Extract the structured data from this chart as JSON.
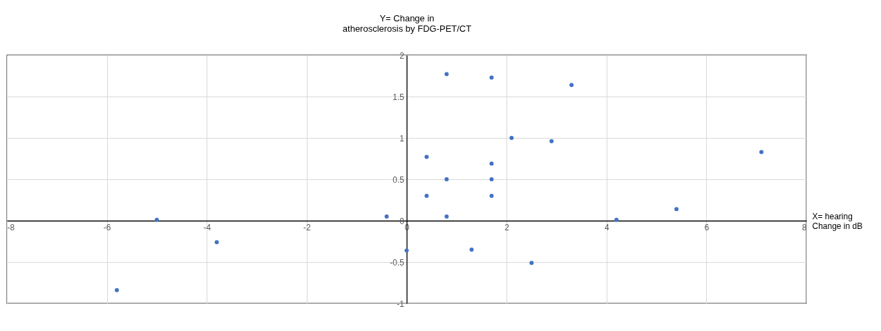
{
  "chart_data": {
    "type": "scatter",
    "xlabel": "X= hearing\nChange in dB",
    "ylabel": "Y= Change in\natherosclerosis  by FDG-PET/CT",
    "x": [
      0.8,
      1.7,
      3.3,
      2.1,
      2.9,
      0.4,
      1.7,
      7.1,
      0.8,
      1.7,
      0.4,
      1.7,
      5.4,
      0.8,
      -0.4,
      -5.0,
      4.2,
      -3.8,
      0,
      1.3,
      2.5,
      -5.8
    ],
    "series": [
      {
        "color": "#4472c4",
        "values": [
          1.77,
          1.73,
          1.64,
          1.0,
          0.96,
          0.77,
          0.69,
          0.83,
          0.5,
          0.5,
          0.3,
          0.3,
          0.14,
          0.05,
          0.05,
          0.01,
          0.01,
          -0.26,
          -0.36,
          -0.35,
          -0.51,
          -0.84
        ]
      }
    ],
    "xlim": [
      -8,
      8
    ],
    "ylim": [
      -1,
      2
    ],
    "xticks": [
      -8,
      -6,
      -4,
      -2,
      0,
      2,
      4,
      6,
      8
    ],
    "yticks": [
      -1,
      -0.5,
      0,
      0.5,
      1,
      1.5,
      2
    ],
    "grid": true,
    "marker": "circle"
  }
}
